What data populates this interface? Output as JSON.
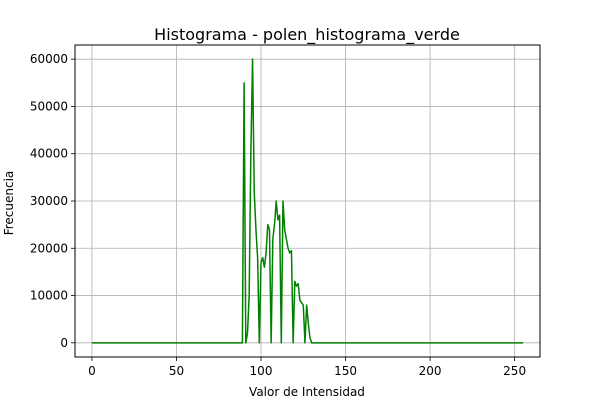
{
  "chart_data": {
    "type": "line",
    "title": "Histograma - polen_histograma_verde",
    "xlabel": "Valor de Intensidad",
    "ylabel": "Frecuencia",
    "xlim": [
      -10,
      265
    ],
    "ylim": [
      -3000,
      63000
    ],
    "xticks": [
      0,
      50,
      100,
      150,
      200,
      250
    ],
    "yticks": [
      0,
      10000,
      20000,
      30000,
      40000,
      50000,
      60000
    ],
    "grid": true,
    "series": [
      {
        "name": "verde",
        "color": "#008000",
        "x": [
          0,
          89,
          90,
          91,
          92,
          93,
          94,
          95,
          96,
          97,
          98,
          99,
          100,
          101,
          102,
          103,
          104,
          105,
          106,
          107,
          108,
          109,
          110,
          111,
          112,
          113,
          114,
          115,
          116,
          117,
          118,
          119,
          120,
          121,
          122,
          123,
          124,
          125,
          126,
          127,
          128,
          129,
          130,
          131,
          132,
          133,
          134,
          135,
          136,
          255
        ],
        "y": [
          0,
          0,
          55000,
          0,
          2000,
          10000,
          40000,
          60000,
          32000,
          24000,
          18000,
          0,
          17000,
          18000,
          16000,
          19000,
          25000,
          24000,
          0,
          22000,
          25000,
          30000,
          26000,
          27000,
          0,
          30000,
          24000,
          22000,
          20000,
          19000,
          19500,
          0,
          13000,
          12000,
          12500,
          9000,
          8500,
          8000,
          0,
          8000,
          4000,
          1000,
          0,
          0,
          0,
          0,
          0,
          0,
          0,
          0
        ]
      }
    ]
  }
}
